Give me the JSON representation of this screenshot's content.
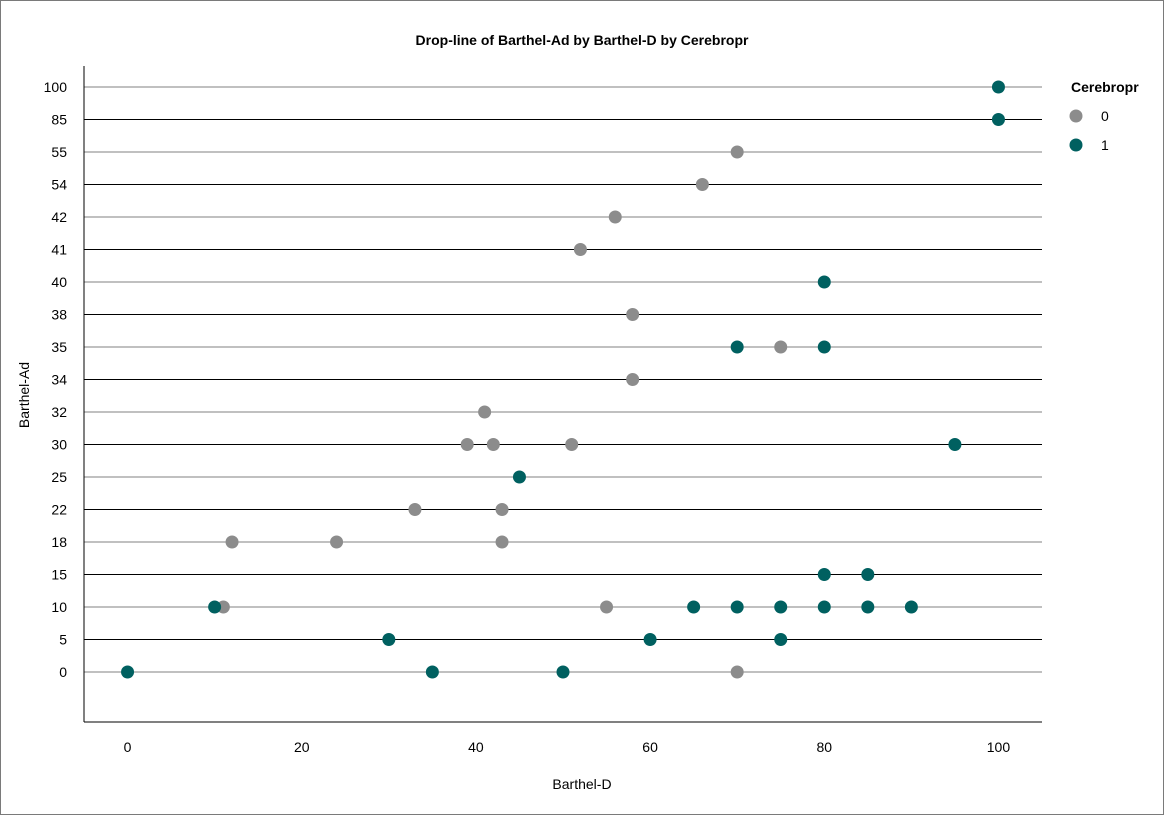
{
  "chart_data": {
    "type": "scatter",
    "title": "Drop-line of Barthel-Ad by Barthel-D by Cerebropr",
    "xlabel": "Barthel-D",
    "ylabel": "Barthel-Ad",
    "xlim": [
      -5,
      105
    ],
    "xticks": [
      0,
      20,
      40,
      60,
      80,
      100
    ],
    "y_categories": [
      "0",
      "5",
      "10",
      "15",
      "18",
      "22",
      "25",
      "30",
      "32",
      "34",
      "35",
      "38",
      "40",
      "41",
      "42",
      "54",
      "55",
      "85",
      "100"
    ],
    "legend": {
      "title": "Cerebropr",
      "position": "top-right"
    },
    "series": [
      {
        "name": "0",
        "color": "#8c8c8c",
        "points": [
          {
            "x": 70,
            "y": "55"
          },
          {
            "x": 66,
            "y": "54"
          },
          {
            "x": 56,
            "y": "42"
          },
          {
            "x": 52,
            "y": "41"
          },
          {
            "x": 58,
            "y": "38"
          },
          {
            "x": 75,
            "y": "35"
          },
          {
            "x": 58,
            "y": "34"
          },
          {
            "x": 41,
            "y": "32"
          },
          {
            "x": 39,
            "y": "30"
          },
          {
            "x": 42,
            "y": "30"
          },
          {
            "x": 51,
            "y": "30"
          },
          {
            "x": 33,
            "y": "22"
          },
          {
            "x": 43,
            "y": "22"
          },
          {
            "x": 12,
            "y": "18"
          },
          {
            "x": 24,
            "y": "18"
          },
          {
            "x": 43,
            "y": "18"
          },
          {
            "x": 11,
            "y": "10"
          },
          {
            "x": 55,
            "y": "10"
          },
          {
            "x": 70,
            "y": "0"
          }
        ]
      },
      {
        "name": "1",
        "color": "#006060",
        "points": [
          {
            "x": 100,
            "y": "100"
          },
          {
            "x": 100,
            "y": "85"
          },
          {
            "x": 80,
            "y": "40"
          },
          {
            "x": 70,
            "y": "35"
          },
          {
            "x": 80,
            "y": "35"
          },
          {
            "x": 95,
            "y": "30"
          },
          {
            "x": 45,
            "y": "25"
          },
          {
            "x": 80,
            "y": "15"
          },
          {
            "x": 85,
            "y": "15"
          },
          {
            "x": 10,
            "y": "10"
          },
          {
            "x": 65,
            "y": "10"
          },
          {
            "x": 70,
            "y": "10"
          },
          {
            "x": 75,
            "y": "10"
          },
          {
            "x": 80,
            "y": "10"
          },
          {
            "x": 85,
            "y": "10"
          },
          {
            "x": 90,
            "y": "10"
          },
          {
            "x": 30,
            "y": "5"
          },
          {
            "x": 60,
            "y": "5"
          },
          {
            "x": 75,
            "y": "5"
          },
          {
            "x": 0,
            "y": "0"
          },
          {
            "x": 35,
            "y": "0"
          },
          {
            "x": 50,
            "y": "0"
          }
        ]
      }
    ]
  }
}
